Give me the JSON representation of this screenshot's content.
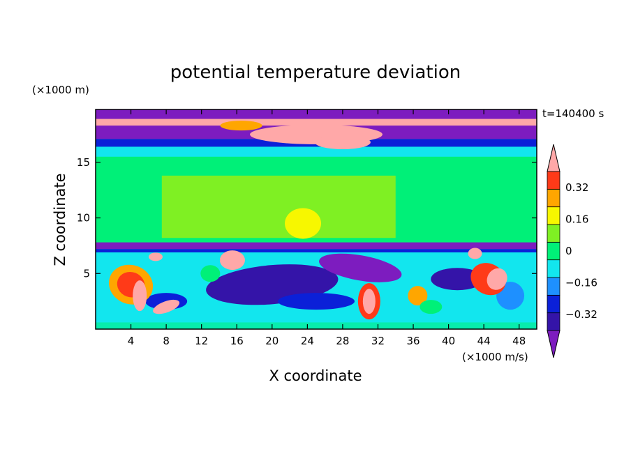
{
  "chart_data": {
    "type": "heatmap",
    "title": "potential temperature deviation",
    "xlabel": "X coordinate",
    "ylabel": "Z coordinate",
    "x_unit": "(×1000 m/s)",
    "y_unit": "(×1000 m)",
    "time_label": "t=140400 s",
    "xlim": [
      0,
      50
    ],
    "ylim": [
      0,
      19.75
    ],
    "x_ticks": [
      4,
      8,
      12,
      16,
      20,
      24,
      28,
      32,
      36,
      40,
      44,
      48
    ],
    "x_tick_labels": [
      "4",
      "8",
      "12",
      "16",
      "20",
      "24",
      "28",
      "32",
      "36",
      "40",
      "44",
      "48"
    ],
    "y_ticks": [
      5,
      10,
      15
    ],
    "y_tick_labels": [
      "5",
      "10",
      "15"
    ],
    "colorbar": {
      "levels": [
        -0.4,
        -0.32,
        -0.24,
        -0.16,
        -0.08,
        0,
        0.08,
        0.16,
        0.24,
        0.32,
        0.4
      ],
      "tick_values": [
        0.32,
        0.16,
        0,
        -0.16,
        -0.32
      ],
      "tick_labels": [
        "0.32",
        "0.16",
        "0",
        "−0.16",
        "−0.32"
      ],
      "colors": [
        "#7d1cbf",
        "#3414a8",
        "#0b20d8",
        "#1e90ff",
        "#12e6ee",
        "#00f078",
        "#7ff023",
        "#f7f700",
        "#ffa600",
        "#ff3a18",
        "#ffa8a8"
      ],
      "extend": "both"
    },
    "regions_description_z_km": {
      "upper_band": [
        15.5,
        19.75
      ],
      "uniform_band": [
        7.5,
        15.5
      ],
      "turbulent_band": [
        0,
        7.5
      ]
    }
  }
}
